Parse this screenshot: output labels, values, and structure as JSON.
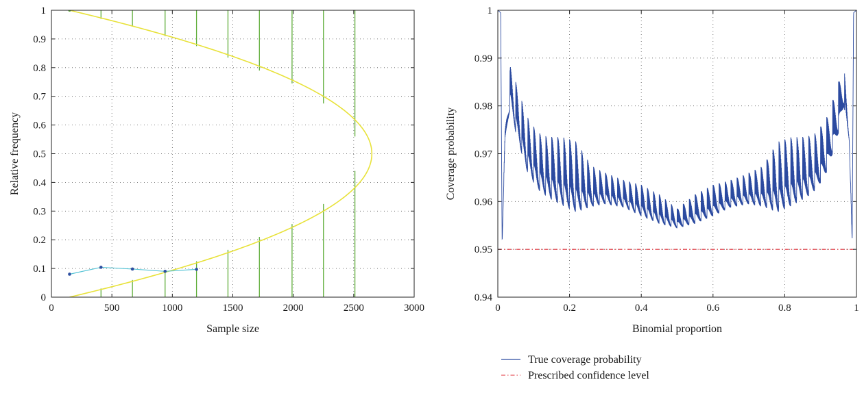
{
  "chart_data": [
    {
      "type": "line",
      "xlabel": "Sample size",
      "ylabel": "Relative frequency",
      "xlim": [
        0,
        3000
      ],
      "ylim": [
        0,
        1
      ],
      "xticks": [
        "0",
        "500",
        "1000",
        "1500",
        "2000",
        "2500",
        "3000"
      ],
      "yticks": [
        "0",
        "0.1",
        "0.2",
        "0.3",
        "0.4",
        "0.5",
        "0.6",
        "0.7",
        "0.8",
        "0.9",
        "1"
      ],
      "grid": true,
      "colors": {
        "curve": "#e8e23a",
        "vlines": "#5fae3a",
        "series": "#57c4d6",
        "markers": "#2e4fa0"
      },
      "curve": {
        "description": "sideways parabola x = 10000*y*(1-y) + 150",
        "points": [
          [
            150,
            0
          ],
          [
            1050,
            0.1
          ],
          [
            1750,
            0.2
          ],
          [
            2250,
            0.3
          ],
          [
            2550,
            0.4
          ],
          [
            2650,
            0.5
          ],
          [
            2550,
            0.6
          ],
          [
            2250,
            0.7
          ],
          [
            1750,
            0.8
          ],
          [
            1050,
            0.9
          ],
          [
            150,
            1
          ]
        ]
      },
      "vlines": [
        {
          "x": 150,
          "y_low": 1.0
        },
        {
          "x": 410,
          "y_low": 0.97
        },
        {
          "x": 670,
          "y_low": 0.945
        },
        {
          "x": 940,
          "y_low": 0.91
        },
        {
          "x": 1200,
          "y_low": 0.875
        },
        {
          "x": 1460,
          "y_low": 0.835
        },
        {
          "x": 1720,
          "y_low": 0.79
        },
        {
          "x": 1990,
          "y_low": 0.745
        },
        {
          "x": 2250,
          "y_low": 0.675
        },
        {
          "x": 2510,
          "y_low": 0.56
        }
      ],
      "vlines_lower": [
        {
          "x": 410,
          "y_high": 0.03
        },
        {
          "x": 670,
          "y_high": 0.06
        },
        {
          "x": 940,
          "y_high": 0.09
        },
        {
          "x": 1200,
          "y_high": 0.125
        },
        {
          "x": 1460,
          "y_high": 0.165
        },
        {
          "x": 1720,
          "y_high": 0.21
        },
        {
          "x": 1990,
          "y_high": 0.255
        },
        {
          "x": 2250,
          "y_high": 0.325
        },
        {
          "x": 2510,
          "y_high": 0.44
        }
      ],
      "series": [
        {
          "x": [
            150,
            410,
            670,
            940,
            1200
          ],
          "y": [
            0.08,
            0.104,
            0.098,
            0.09,
            0.097
          ]
        }
      ]
    },
    {
      "type": "line",
      "xlabel": "Binomial proportion",
      "ylabel": "Coverage probability",
      "xlim": [
        0,
        1
      ],
      "ylim": [
        0.94,
        1
      ],
      "xticks": [
        "0",
        "0.2",
        "0.4",
        "0.6",
        "0.8",
        "1"
      ],
      "yticks": [
        "0.94",
        "0.95",
        "0.96",
        "0.97",
        "0.98",
        "0.99",
        "1"
      ],
      "grid": true,
      "legend_position": "below",
      "series": [
        {
          "name": "True coverage probability",
          "color": "#2b4aa0",
          "style": "solid",
          "envelope_x": [
            0.0,
            0.008,
            0.012,
            0.02,
            0.035,
            0.05,
            0.08,
            0.11,
            0.14,
            0.18,
            0.22,
            0.26,
            0.3,
            0.35,
            0.4,
            0.45,
            0.5,
            0.55,
            0.6,
            0.65,
            0.7,
            0.74,
            0.78,
            0.82,
            0.86,
            0.89,
            0.92,
            0.95,
            0.965,
            0.98,
            0.988,
            0.992,
            1.0
          ],
          "envelope_hi": [
            1.0,
            0.9995,
            0.952,
            0.975,
            0.9885,
            0.985,
            0.978,
            0.9745,
            0.9735,
            0.9735,
            0.9725,
            0.9675,
            0.966,
            0.9645,
            0.9635,
            0.9615,
            0.9585,
            0.9615,
            0.9635,
            0.9645,
            0.966,
            0.9675,
            0.9725,
            0.9735,
            0.9735,
            0.9745,
            0.978,
            0.985,
            0.9885,
            0.975,
            0.952,
            0.9995,
            1.0
          ],
          "envelope_lo": [
            1.0,
            0.9995,
            0.951,
            0.972,
            0.978,
            0.972,
            0.964,
            0.96,
            0.958,
            0.956,
            0.9545,
            0.957,
            0.958,
            0.9575,
            0.9555,
            0.954,
            0.9535,
            0.954,
            0.9555,
            0.9575,
            0.958,
            0.957,
            0.9545,
            0.956,
            0.958,
            0.96,
            0.964,
            0.972,
            0.978,
            0.972,
            0.951,
            0.9995,
            1.0
          ]
        },
        {
          "name": "Prescribed confidence level",
          "color": "#e0303a",
          "style": "dashdot",
          "x": [
            0,
            1
          ],
          "y": [
            0.95,
            0.95
          ]
        }
      ]
    }
  ]
}
